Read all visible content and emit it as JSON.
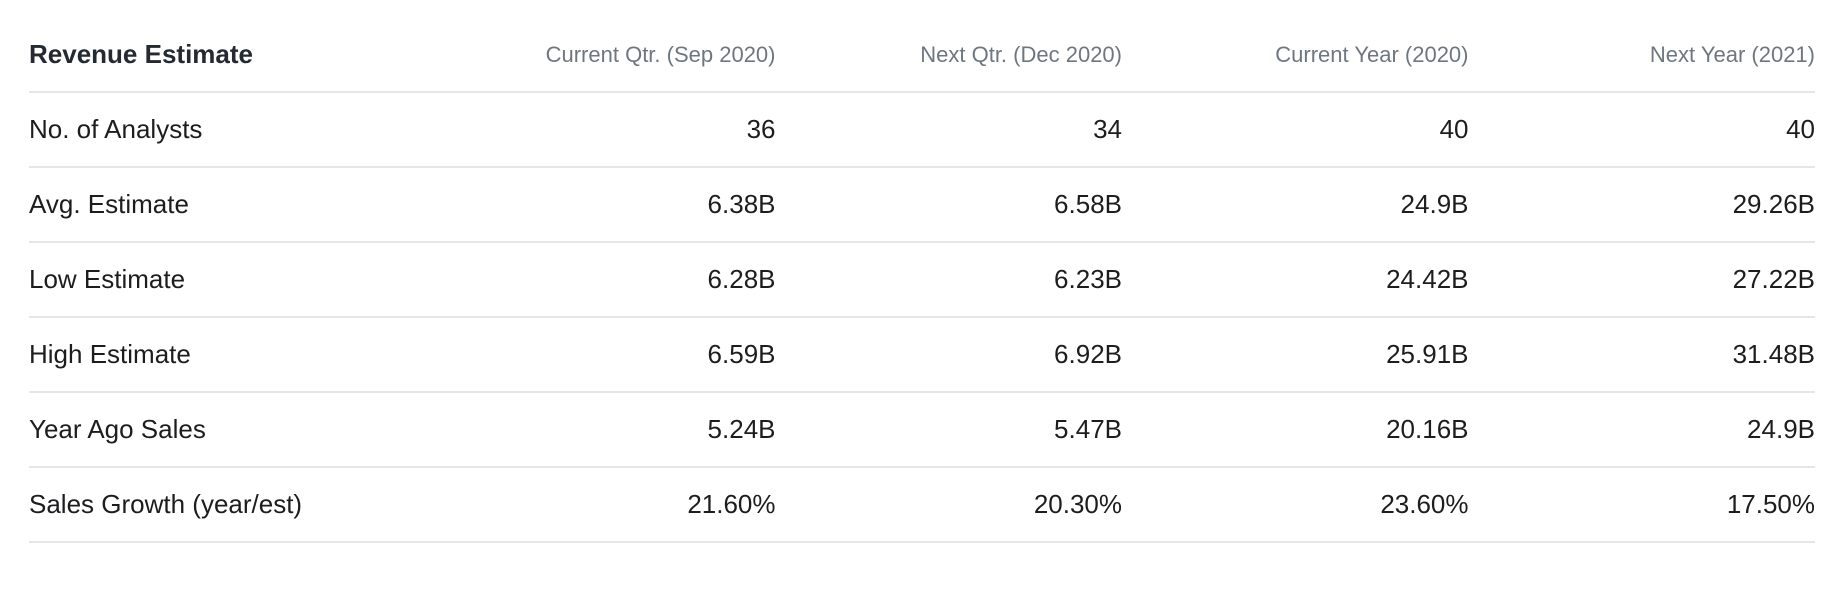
{
  "table": {
    "title": "Revenue Estimate",
    "columns": [
      "Current Qtr. (Sep 2020)",
      "Next Qtr. (Dec 2020)",
      "Current Year (2020)",
      "Next Year (2021)"
    ],
    "rows": [
      {
        "label": "No. of Analysts",
        "values": [
          "36",
          "34",
          "40",
          "40"
        ]
      },
      {
        "label": "Avg. Estimate",
        "values": [
          "6.38B",
          "6.58B",
          "24.9B",
          "29.26B"
        ]
      },
      {
        "label": "Low Estimate",
        "values": [
          "6.28B",
          "6.23B",
          "24.42B",
          "27.22B"
        ]
      },
      {
        "label": "High Estimate",
        "values": [
          "6.59B",
          "6.92B",
          "25.91B",
          "31.48B"
        ]
      },
      {
        "label": "Year Ago Sales",
        "values": [
          "5.24B",
          "5.47B",
          "20.16B",
          "24.9B"
        ]
      },
      {
        "label": "Sales Growth (year/est)",
        "values": [
          "21.60%",
          "20.30%",
          "23.60%",
          "17.50%"
        ]
      }
    ]
  }
}
